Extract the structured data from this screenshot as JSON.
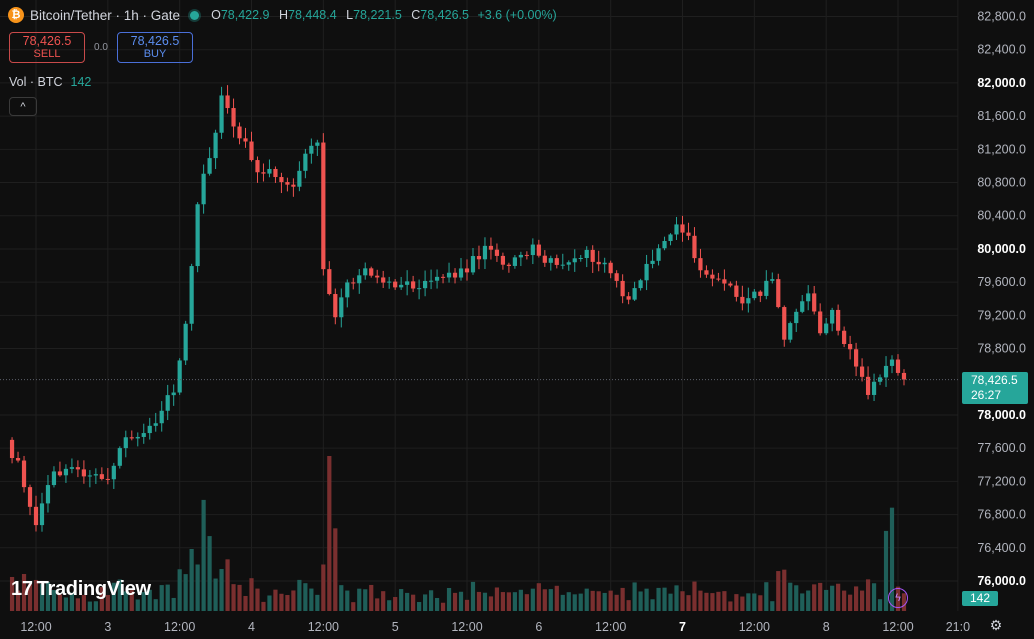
{
  "header": {
    "coin_glyph": "₿",
    "symbol": "Bitcoin/Tether · 1h · Gate",
    "ohlc": {
      "o_label": "O",
      "o": "78,422.9",
      "h_label": "H",
      "h": "78,448.4",
      "l_label": "L",
      "l": "78,221.5",
      "c_label": "C",
      "c": "78,426.5",
      "change": "+3.6 (+0.00%)"
    }
  },
  "trade": {
    "sell_price": "78,426.5",
    "sell_label": "SELL",
    "spread": "0.0",
    "buy_price": "78,426.5",
    "buy_label": "BUY"
  },
  "volume_legend": {
    "label": "Vol · BTC",
    "value": "142"
  },
  "collapse_icon": "^",
  "branding": {
    "mark": "17",
    "name": "TradingView"
  },
  "last_price": {
    "price": "78,426.5",
    "countdown": "26:27"
  },
  "last_volume": "142",
  "icons": {
    "bolt": "ϟ",
    "gear": "⚙"
  },
  "colors": {
    "up": "#26a69a",
    "down": "#ef5350",
    "up_vol": "#1f5f59",
    "down_vol": "#7a2f2f",
    "background": "#0f0f0f",
    "grid": "#1f1f1f"
  },
  "chart_data": {
    "type": "candlestick",
    "interval": "1h",
    "ylim": [
      75800,
      83000
    ],
    "y_ticks": [
      "82,800.0",
      "82,400.0",
      "82,000.0",
      "81,600.0",
      "81,200.0",
      "80,800.0",
      "80,400.0",
      "80,000.0",
      "79,600.0",
      "79,200.0",
      "78,800.0",
      "78,000.0",
      "77,600.0",
      "77,200.0",
      "76,800.0",
      "76,400.0",
      "76,000.0"
    ],
    "y_tick_values": [
      82800,
      82400,
      82000,
      81600,
      81200,
      80800,
      80400,
      80000,
      79600,
      79200,
      78800,
      78000,
      77600,
      77200,
      76800,
      76400,
      76000
    ],
    "bold_ticks": [
      "82,000.0",
      "80,000.0",
      "78,000.0",
      "76,000.0"
    ],
    "x_labels": [
      "12:00",
      "3",
      "12:00",
      "4",
      "12:00",
      "5",
      "12:00",
      "6",
      "12:00",
      "7",
      "12:00",
      "8",
      "12:00",
      "21:0"
    ],
    "x_label_hours": [
      4,
      16,
      28,
      40,
      52,
      64,
      76,
      88,
      100,
      112,
      124,
      136,
      148,
      158
    ],
    "anchors_close": [
      [
        0,
        77700
      ],
      [
        2,
        77400
      ],
      [
        5,
        76700
      ],
      [
        8,
        77300
      ],
      [
        12,
        77350
      ],
      [
        17,
        77250
      ],
      [
        20,
        77750
      ],
      [
        24,
        77800
      ],
      [
        28,
        78300
      ],
      [
        30,
        79100
      ],
      [
        32,
        80600
      ],
      [
        34,
        81100
      ],
      [
        36,
        81800
      ],
      [
        38,
        81500
      ],
      [
        40,
        81300
      ],
      [
        42,
        80900
      ],
      [
        44,
        81000
      ],
      [
        48,
        80700
      ],
      [
        50,
        81150
      ],
      [
        52,
        81250
      ],
      [
        53,
        79700
      ],
      [
        55,
        79200
      ],
      [
        57,
        79600
      ],
      [
        60,
        79700
      ],
      [
        64,
        79600
      ],
      [
        68,
        79550
      ],
      [
        72,
        79650
      ],
      [
        76,
        79700
      ],
      [
        80,
        80000
      ],
      [
        84,
        79800
      ],
      [
        88,
        80000
      ],
      [
        92,
        79800
      ],
      [
        96,
        79950
      ],
      [
        100,
        79850
      ],
      [
        102,
        79600
      ],
      [
        104,
        79400
      ],
      [
        108,
        79900
      ],
      [
        112,
        80300
      ],
      [
        114,
        80100
      ],
      [
        116,
        79700
      ],
      [
        120,
        79600
      ],
      [
        124,
        79350
      ],
      [
        126,
        79500
      ],
      [
        128,
        79600
      ],
      [
        130,
        78900
      ],
      [
        132,
        79200
      ],
      [
        134,
        79400
      ],
      [
        136,
        79000
      ],
      [
        138,
        79300
      ],
      [
        140,
        78850
      ],
      [
        142,
        78600
      ],
      [
        144,
        78300
      ],
      [
        146,
        78450
      ],
      [
        148,
        78700
      ],
      [
        150,
        78426.5
      ]
    ],
    "total_bars": 150,
    "last_bar_hour": 149,
    "volume_spikes": [
      [
        30,
        1200
      ],
      [
        32,
        2150
      ],
      [
        33,
        1450
      ],
      [
        36,
        1000
      ],
      [
        53,
        3000
      ],
      [
        54,
        1600
      ],
      [
        146,
        1550
      ],
      [
        147,
        2000
      ]
    ]
  }
}
